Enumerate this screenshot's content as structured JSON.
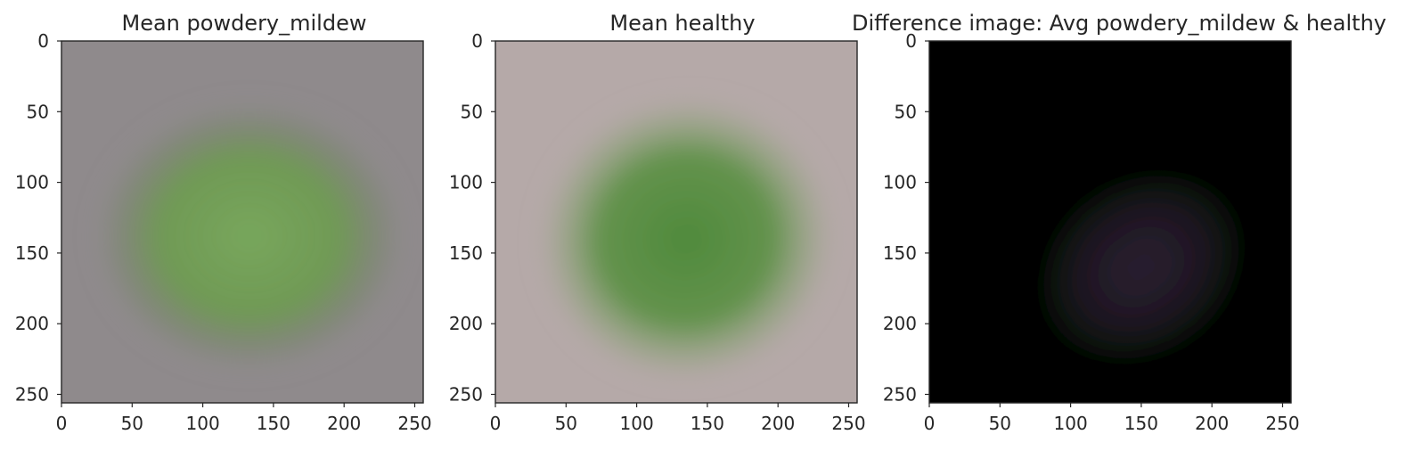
{
  "chart_data": [
    {
      "type": "heatmap",
      "title": "Mean powdery_mildew",
      "xlabel": "",
      "ylabel": "",
      "xlim": [
        0,
        256
      ],
      "ylim": [
        256,
        0
      ],
      "xticks": [
        0,
        50,
        100,
        150,
        200,
        250
      ],
      "yticks": [
        0,
        50,
        100,
        150,
        200,
        250
      ],
      "grid": false,
      "colors": {
        "background": "#8f8a8c",
        "leaf": "#6e9a52",
        "leaf_center": "#78a75c",
        "edge_shadow": "#78866b"
      }
    },
    {
      "type": "heatmap",
      "title": "Mean healthy",
      "xlabel": "",
      "ylabel": "",
      "xlim": [
        0,
        256
      ],
      "ylim": [
        256,
        0
      ],
      "xticks": [
        0,
        50,
        100,
        150,
        200,
        250
      ],
      "yticks": [
        0,
        50,
        100,
        150,
        200,
        250
      ],
      "grid": false,
      "colors": {
        "background": "#b5a9a8",
        "leaf": "#5f9148",
        "leaf_center": "#4f8a3c",
        "edge_shadow": "#8fa27b"
      }
    },
    {
      "type": "heatmap",
      "title": "Difference image: Avg powdery_mildew & healthy",
      "xlabel": "",
      "ylabel": "",
      "xlim": [
        0,
        256
      ],
      "ylim": [
        256,
        0
      ],
      "xticks": [
        0,
        50,
        100,
        150,
        200,
        250
      ],
      "yticks": [
        0,
        50,
        100,
        150,
        200,
        250
      ],
      "grid": false,
      "colors": {
        "background": "#000000",
        "leaf": "#1e1622",
        "leaf_center": "#2a2030",
        "edge_shadow": "#101a10"
      }
    }
  ]
}
